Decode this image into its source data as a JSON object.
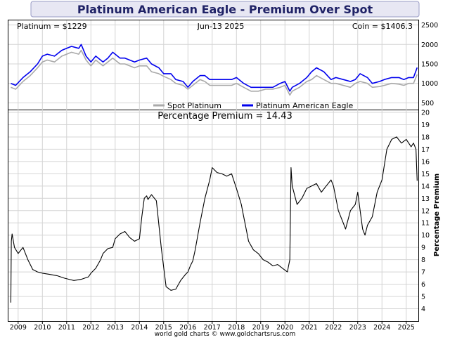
{
  "chart_data": {
    "title": "Platinum American Eagle - Premium Over Spot",
    "credit": "world gold charts © www.goldchartsrus.com",
    "top_panel": {
      "type": "line",
      "info_left": "Platinum = $1229",
      "info_center": "Jun-13  2025",
      "info_right": "Coin = $1406.3",
      "y_ticks": [
        "500",
        "1000",
        "1500",
        "2000",
        "2500"
      ],
      "ylim": [
        400,
        2600
      ],
      "grid": true,
      "legend_position": "bottom-center",
      "series": [
        {
          "name": "Spot Platinum",
          "color": "#a9a9a9",
          "x": [
            2008.7,
            2008.9,
            2009.2,
            2009.5,
            2009.8,
            2010.0,
            2010.2,
            2010.5,
            2010.8,
            2011.0,
            2011.2,
            2011.5,
            2011.6,
            2011.8,
            2012.0,
            2012.2,
            2012.5,
            2012.7,
            2012.9,
            2013.0,
            2013.2,
            2013.4,
            2013.6,
            2013.8,
            2014.0,
            2014.3,
            2014.5,
            2014.8,
            2015.0,
            2015.3,
            2015.5,
            2015.8,
            2016.0,
            2016.2,
            2016.5,
            2016.7,
            2016.9,
            2017.2,
            2017.5,
            2017.8,
            2018.0,
            2018.3,
            2018.6,
            2018.9,
            2019.2,
            2019.5,
            2019.8,
            2020.0,
            2020.2,
            2020.3,
            2020.6,
            2020.9,
            2021.1,
            2021.3,
            2021.6,
            2021.9,
            2022.1,
            2022.4,
            2022.7,
            2022.9,
            2023.1,
            2023.4,
            2023.6,
            2023.9,
            2024.1,
            2024.4,
            2024.7,
            2024.9,
            2025.1,
            2025.3,
            2025.45
          ],
          "values": [
            900,
            850,
            1050,
            1200,
            1400,
            1550,
            1600,
            1550,
            1700,
            1750,
            1800,
            1750,
            1850,
            1600,
            1450,
            1600,
            1450,
            1550,
            1650,
            1600,
            1500,
            1500,
            1450,
            1400,
            1450,
            1450,
            1300,
            1250,
            1180,
            1100,
            1000,
            950,
            850,
            950,
            1100,
            1050,
            950,
            950,
            950,
            950,
            1000,
            900,
            800,
            800,
            850,
            850,
            900,
            950,
            700,
            800,
            900,
            1050,
            1100,
            1200,
            1100,
            1000,
            1000,
            950,
            900,
            1000,
            1050,
            1000,
            900,
            920,
            950,
            1000,
            980,
            950,
            1000,
            1000,
            1229
          ]
        },
        {
          "name": "Platinum American Eagle",
          "color": "#0000ee",
          "x": [
            2008.7,
            2008.9,
            2009.2,
            2009.5,
            2009.8,
            2010.0,
            2010.2,
            2010.5,
            2010.8,
            2011.0,
            2011.2,
            2011.5,
            2011.6,
            2011.8,
            2012.0,
            2012.2,
            2012.5,
            2012.7,
            2012.9,
            2013.0,
            2013.2,
            2013.4,
            2013.6,
            2013.8,
            2014.0,
            2014.3,
            2014.5,
            2014.8,
            2015.0,
            2015.3,
            2015.5,
            2015.8,
            2016.0,
            2016.2,
            2016.5,
            2016.7,
            2016.9,
            2017.2,
            2017.5,
            2017.8,
            2018.0,
            2018.3,
            2018.6,
            2018.9,
            2019.2,
            2019.5,
            2019.8,
            2020.0,
            2020.2,
            2020.3,
            2020.6,
            2020.9,
            2021.1,
            2021.3,
            2021.6,
            2021.9,
            2022.1,
            2022.4,
            2022.7,
            2022.9,
            2023.1,
            2023.4,
            2023.6,
            2023.9,
            2024.1,
            2024.4,
            2024.7,
            2024.9,
            2025.1,
            2025.3,
            2025.45
          ],
          "values": [
            1000,
            950,
            1150,
            1300,
            1500,
            1700,
            1750,
            1700,
            1850,
            1900,
            1950,
            1900,
            2000,
            1700,
            1550,
            1700,
            1550,
            1650,
            1800,
            1750,
            1650,
            1650,
            1600,
            1550,
            1600,
            1650,
            1500,
            1400,
            1250,
            1250,
            1100,
            1050,
            900,
            1050,
            1200,
            1200,
            1100,
            1100,
            1100,
            1100,
            1150,
            1000,
            900,
            900,
            900,
            900,
            1000,
            1050,
            800,
            900,
            1000,
            1150,
            1300,
            1400,
            1300,
            1100,
            1150,
            1100,
            1050,
            1100,
            1250,
            1150,
            1000,
            1050,
            1100,
            1150,
            1150,
            1100,
            1150,
            1150,
            1406
          ]
        }
      ]
    },
    "bottom_panel": {
      "type": "line",
      "subtitle": "Percentage Premium = 14.43",
      "ylabel": "Percentage Premium",
      "ylim": [
        3,
        20
      ],
      "y_ticks": [
        "4",
        "5",
        "6",
        "7",
        "8",
        "9",
        "10",
        "11",
        "12",
        "13",
        "14",
        "15",
        "16",
        "17",
        "18",
        "19",
        "20"
      ],
      "grid": true,
      "series": [
        {
          "name": "",
          "color": "#000000",
          "x": [
            2008.7,
            2008.72,
            2008.75,
            2008.85,
            2009.0,
            2009.2,
            2009.4,
            2009.6,
            2009.8,
            2010.0,
            2010.3,
            2010.6,
            2010.9,
            2011.1,
            2011.3,
            2011.6,
            2011.9,
            2012.0,
            2012.2,
            2012.4,
            2012.5,
            2012.7,
            2012.9,
            2013.0,
            2013.2,
            2013.4,
            2013.6,
            2013.8,
            2014.0,
            2014.1,
            2014.2,
            2014.3,
            2014.35,
            2014.5,
            2014.7,
            2014.9,
            2015.1,
            2015.3,
            2015.5,
            2015.7,
            2015.9,
            2016.0,
            2016.1,
            2016.2,
            2016.3,
            2016.5,
            2016.7,
            2016.9,
            2017.0,
            2017.2,
            2017.4,
            2017.6,
            2017.8,
            2018.0,
            2018.2,
            2018.3,
            2018.4,
            2018.5,
            2018.7,
            2018.9,
            2019.1,
            2019.3,
            2019.5,
            2019.7,
            2019.9,
            2020.1,
            2020.2,
            2020.25,
            2020.3,
            2020.5,
            2020.7,
            2020.9,
            2021.1,
            2021.3,
            2021.5,
            2021.7,
            2021.9,
            2022.0,
            2022.2,
            2022.4,
            2022.5,
            2022.7,
            2022.9,
            2023.0,
            2023.1,
            2023.2,
            2023.3,
            2023.4,
            2023.6,
            2023.8,
            2024.0,
            2024.2,
            2024.4,
            2024.6,
            2024.8,
            2025.0,
            2025.2,
            2025.3,
            2025.4,
            2025.45
          ],
          "values": [
            4.5,
            9.5,
            10.1,
            9.0,
            8.5,
            9.0,
            8.0,
            7.2,
            7.0,
            6.9,
            6.8,
            6.7,
            6.5,
            6.4,
            6.3,
            6.4,
            6.6,
            6.9,
            7.3,
            8.0,
            8.5,
            8.9,
            9.0,
            9.7,
            10.1,
            10.3,
            9.8,
            9.5,
            9.7,
            11.5,
            13.0,
            13.2,
            12.9,
            13.3,
            12.8,
            9.0,
            5.8,
            5.5,
            5.6,
            6.3,
            6.8,
            7.0,
            7.5,
            7.9,
            8.8,
            11.0,
            13.0,
            14.5,
            15.5,
            15.1,
            15.0,
            14.8,
            15.0,
            13.8,
            12.5,
            11.5,
            10.5,
            9.5,
            8.8,
            8.5,
            8.0,
            7.8,
            7.5,
            7.6,
            7.3,
            7.0,
            8.0,
            15.5,
            14.0,
            12.5,
            13.0,
            13.8,
            14.0,
            14.2,
            13.5,
            14.0,
            14.5,
            14.0,
            12.0,
            11.0,
            10.5,
            12.0,
            12.5,
            13.5,
            12.0,
            10.5,
            10.0,
            10.8,
            11.5,
            13.5,
            14.5,
            17.0,
            17.8,
            18.0,
            17.5,
            17.8,
            17.2,
            17.5,
            17.0,
            14.43
          ]
        }
      ]
    },
    "x_axis": {
      "labels": [
        "2009",
        "2010",
        "2011",
        "2012",
        "2013",
        "2014",
        "2015",
        "2016",
        "2017",
        "2018",
        "2019",
        "2020",
        "2021",
        "2022",
        "2023",
        "2024",
        "2025"
      ],
      "xlim": [
        2008.6,
        2025.5
      ]
    }
  }
}
